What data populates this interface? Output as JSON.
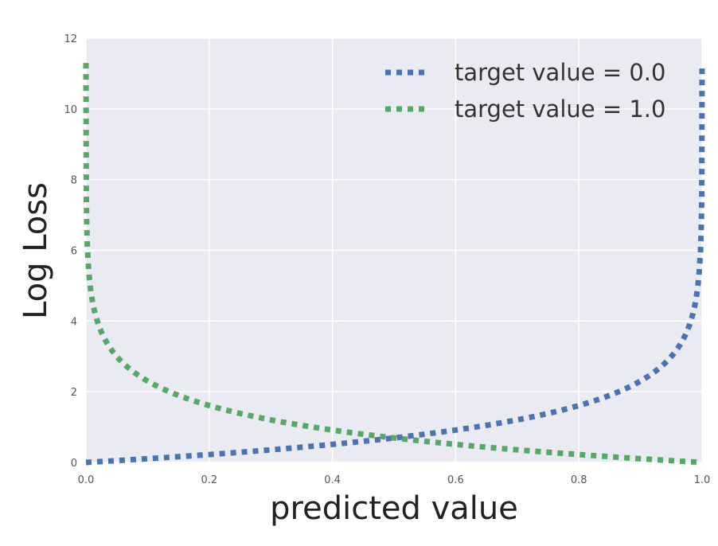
{
  "chart_data": {
    "type": "line",
    "title": "",
    "xlabel": "predicted value",
    "ylabel": "Log Loss",
    "xlim": [
      0.0,
      1.0
    ],
    "ylim": [
      0,
      12
    ],
    "x_ticks": [
      "0.0",
      "0.2",
      "0.4",
      "0.6",
      "0.8",
      "1.0"
    ],
    "y_ticks": [
      "0",
      "2",
      "4",
      "6",
      "8",
      "10",
      "12"
    ],
    "grid": true,
    "legend_position": "top-right",
    "line_style": "dotted",
    "series": [
      {
        "name": "target value = 0.0",
        "color": "#4C72B0",
        "x": [
          0.0,
          0.1,
          0.2,
          0.3,
          0.4,
          0.5,
          0.6,
          0.7,
          0.8,
          0.9,
          0.95,
          0.98,
          0.99,
          1.0
        ],
        "values": [
          0.0,
          0.105,
          0.223,
          0.357,
          0.511,
          0.693,
          0.916,
          1.204,
          1.609,
          2.303,
          2.996,
          3.912,
          4.6,
          11.3
        ]
      },
      {
        "name": "target value = 1.0",
        "color": "#55A868",
        "x": [
          0.0,
          0.01,
          0.02,
          0.05,
          0.1,
          0.2,
          0.3,
          0.4,
          0.5,
          0.6,
          0.7,
          0.8,
          0.9,
          1.0
        ],
        "values": [
          11.3,
          4.6,
          3.912,
          2.996,
          2.303,
          1.609,
          1.204,
          0.916,
          0.693,
          0.511,
          0.357,
          0.223,
          0.105,
          0.0
        ]
      }
    ]
  }
}
